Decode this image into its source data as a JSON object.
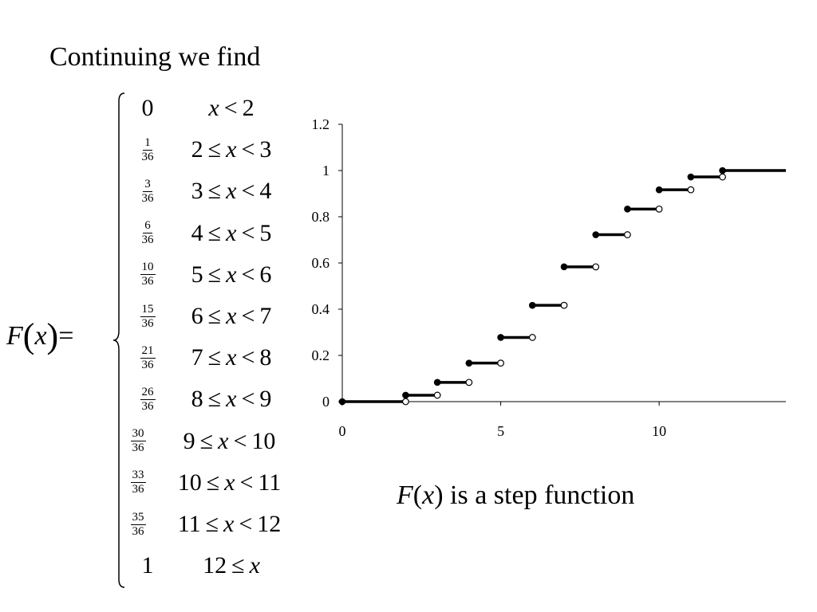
{
  "heading": "Continuing we find",
  "lhs": {
    "func": "F",
    "open": "(",
    "var": "x",
    "close": ")",
    "eq": "="
  },
  "cases": [
    {
      "value": "0",
      "cond": [
        [
          "x",
          "i"
        ],
        [
          "<",
          ""
        ],
        [
          "2",
          ""
        ]
      ]
    },
    {
      "num": "1",
      "den": "36",
      "cond": [
        [
          "2",
          ""
        ],
        [
          "≤",
          ""
        ],
        [
          "x",
          "i"
        ],
        [
          "<",
          ""
        ],
        [
          "3",
          ""
        ]
      ]
    },
    {
      "num": "3",
      "den": "36",
      "cond": [
        [
          "3",
          ""
        ],
        [
          "≤",
          ""
        ],
        [
          "x",
          "i"
        ],
        [
          "<",
          ""
        ],
        [
          "4",
          ""
        ]
      ]
    },
    {
      "num": "6",
      "den": "36",
      "cond": [
        [
          "4",
          ""
        ],
        [
          "≤",
          ""
        ],
        [
          "x",
          "i"
        ],
        [
          "<",
          ""
        ],
        [
          "5",
          ""
        ]
      ]
    },
    {
      "num": "10",
      "den": "36",
      "cond": [
        [
          "5",
          ""
        ],
        [
          "≤",
          ""
        ],
        [
          "x",
          "i"
        ],
        [
          "<",
          ""
        ],
        [
          "6",
          ""
        ]
      ]
    },
    {
      "num": "15",
      "den": "36",
      "cond": [
        [
          "6",
          ""
        ],
        [
          "≤",
          ""
        ],
        [
          "x",
          "i"
        ],
        [
          "<",
          ""
        ],
        [
          "7",
          ""
        ]
      ]
    },
    {
      "num": "21",
      "den": "36",
      "cond": [
        [
          "7",
          ""
        ],
        [
          "≤",
          ""
        ],
        [
          "x",
          "i"
        ],
        [
          "<",
          ""
        ],
        [
          "8",
          ""
        ]
      ]
    },
    {
      "num": "26",
      "den": "36",
      "cond": [
        [
          "8",
          ""
        ],
        [
          "≤",
          ""
        ],
        [
          "x",
          "i"
        ],
        [
          "<",
          ""
        ],
        [
          "9",
          ""
        ]
      ]
    },
    {
      "num": "30",
      "den": "36",
      "cond": [
        [
          "9",
          ""
        ],
        [
          "≤",
          ""
        ],
        [
          "x",
          "i"
        ],
        [
          "<",
          ""
        ],
        [
          "10",
          ""
        ]
      ]
    },
    {
      "num": "33",
      "den": "36",
      "cond": [
        [
          "10",
          ""
        ],
        [
          "≤",
          ""
        ],
        [
          "x",
          "i"
        ],
        [
          "<",
          ""
        ],
        [
          "11",
          ""
        ]
      ]
    },
    {
      "num": "35",
      "den": "36",
      "cond": [
        [
          "11",
          ""
        ],
        [
          "≤",
          ""
        ],
        [
          "x",
          "i"
        ],
        [
          "<",
          ""
        ],
        [
          "12",
          ""
        ]
      ]
    },
    {
      "value": "1",
      "cond": [
        [
          "12",
          ""
        ],
        [
          "≤",
          ""
        ],
        [
          "x",
          "i"
        ]
      ]
    }
  ],
  "caption": {
    "func": "F",
    "open": "(",
    "var": "x",
    "close": ")",
    "rest": " is a step function"
  },
  "chart_data": {
    "type": "line",
    "title": "",
    "xlabel": "",
    "ylabel": "",
    "xlim": [
      0,
      14
    ],
    "ylim": [
      0,
      1.2
    ],
    "x_ticks": [
      0,
      5,
      10
    ],
    "x_tick_labels": [
      "0",
      "5",
      "10"
    ],
    "y_ticks": [
      0,
      0.2,
      0.4,
      0.6,
      0.8,
      1,
      1.2
    ],
    "y_tick_labels": [
      "0",
      "0.2",
      "0.4",
      "0.6",
      "0.8",
      "1",
      "1.2"
    ],
    "grid": false,
    "legend": "none",
    "line_color": "#000000",
    "steps": [
      {
        "x0": 0,
        "x1": 2,
        "y": 0
      },
      {
        "x0": 2,
        "x1": 3,
        "y": 0.0278
      },
      {
        "x0": 3,
        "x1": 4,
        "y": 0.0833
      },
      {
        "x0": 4,
        "x1": 5,
        "y": 0.1667
      },
      {
        "x0": 5,
        "x1": 6,
        "y": 0.2778
      },
      {
        "x0": 6,
        "x1": 7,
        "y": 0.4167
      },
      {
        "x0": 7,
        "x1": 8,
        "y": 0.5833
      },
      {
        "x0": 8,
        "x1": 9,
        "y": 0.7222
      },
      {
        "x0": 9,
        "x1": 10,
        "y": 0.8333
      },
      {
        "x0": 10,
        "x1": 11,
        "y": 0.9167
      },
      {
        "x0": 11,
        "x1": 12,
        "y": 0.9722
      },
      {
        "x0": 12,
        "x1": 14,
        "y": 1
      }
    ]
  }
}
